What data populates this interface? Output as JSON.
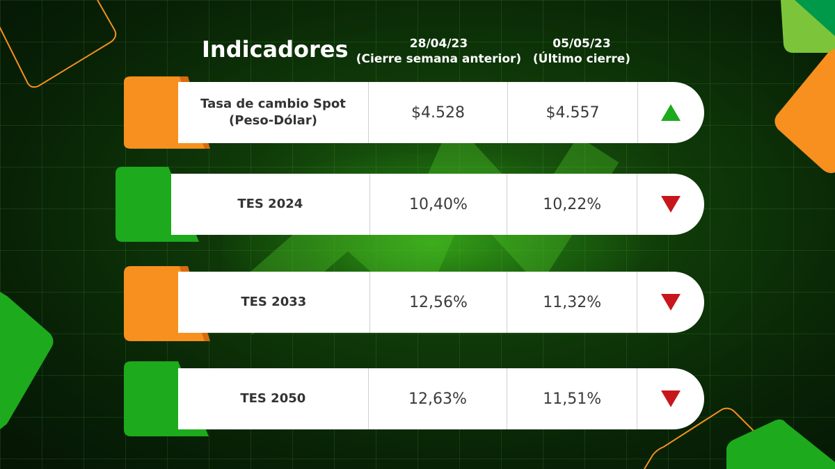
{
  "header": {
    "title": "Indicadores",
    "col1_date": "28/04/23",
    "col1_sub": "(Cierre semana anterior)",
    "col2_date": "05/05/23",
    "col2_sub": "(Último cierre)"
  },
  "colors": {
    "orange": "#f7901e",
    "green": "#1daa1d",
    "up": "#1daa1d",
    "down": "#c8161d"
  },
  "rows": [
    {
      "label_line1": "Tasa de cambio Spot",
      "label_line2": "(Peso-Dólar)",
      "prev": "$4.528",
      "last": "$4.557",
      "trend": "up",
      "tab": "orange"
    },
    {
      "label_line1": "TES 2024",
      "label_line2": "",
      "prev": "10,40%",
      "last": "10,22%",
      "trend": "down",
      "tab": "green"
    },
    {
      "label_line1": "TES 2033",
      "label_line2": "",
      "prev": "12,56%",
      "last": "11,32%",
      "trend": "down",
      "tab": "orange"
    },
    {
      "label_line1": "TES 2050",
      "label_line2": "",
      "prev": "12,63%",
      "last": "11,51%",
      "trend": "down",
      "tab": "green"
    }
  ]
}
